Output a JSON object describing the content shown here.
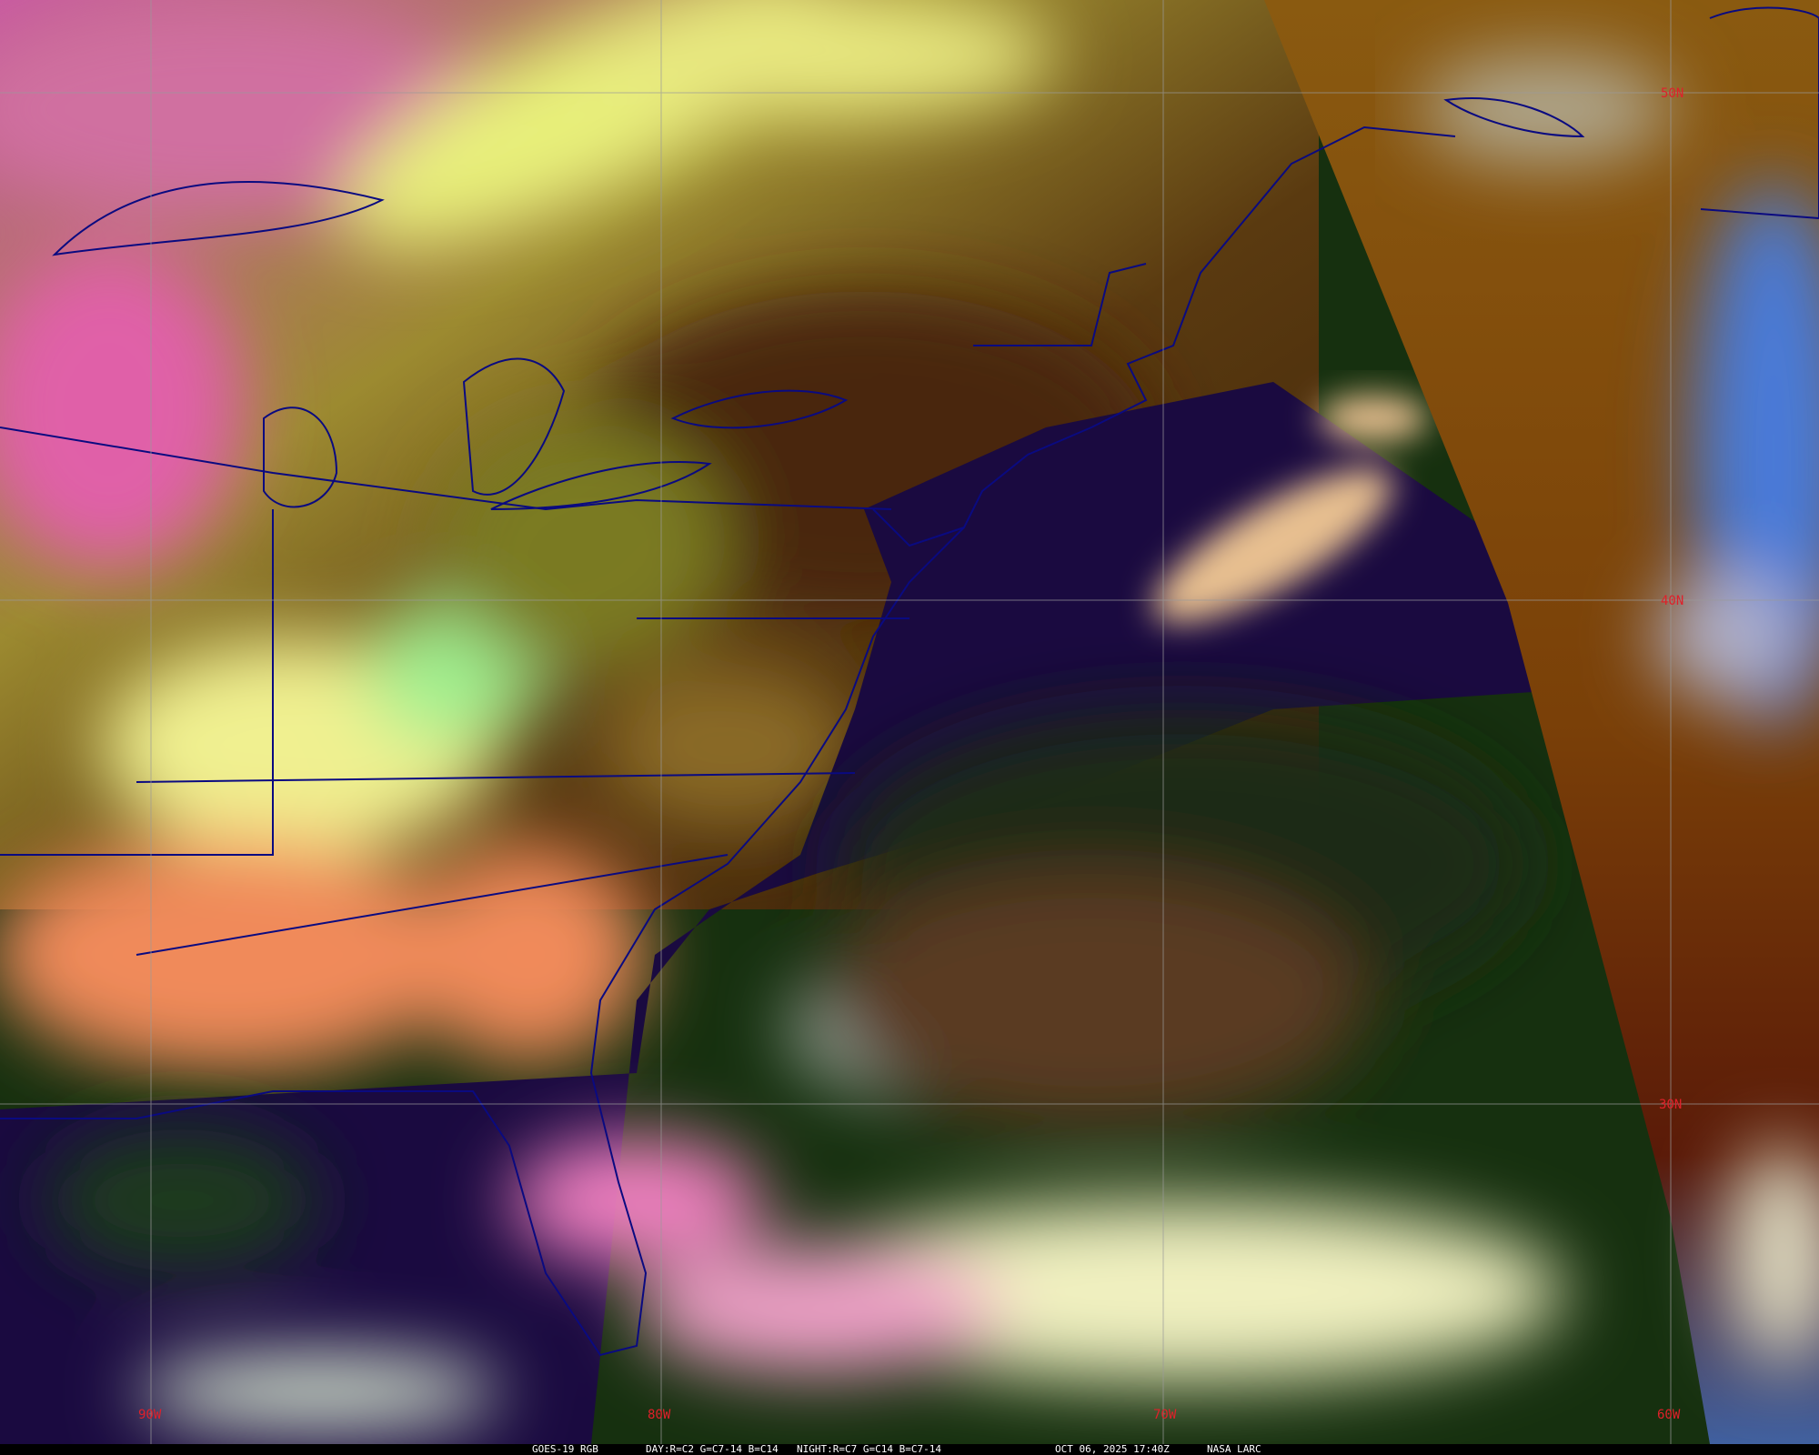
{
  "map": {
    "product": "GOES-19 RGB",
    "day_recipe": "DAY:R=C2 G=C7-14 B=C14",
    "night_recipe": "NIGHT:R=C7 G=C14 B=C7-14",
    "timestamp": "OCT 06, 2025 17:40Z",
    "credit": "NASA LARC",
    "longitude_labels": [
      "90W",
      "80W",
      "70W",
      "60W"
    ],
    "latitude_labels": [
      "50N",
      "40N",
      "30N"
    ],
    "colors": {
      "grid_label": "#e0202a",
      "boundaries": "#0a0a80",
      "grid_lines": "#9a9a9a",
      "ocean_day": "#1c0c3c",
      "night_region": "#8a5010"
    }
  }
}
